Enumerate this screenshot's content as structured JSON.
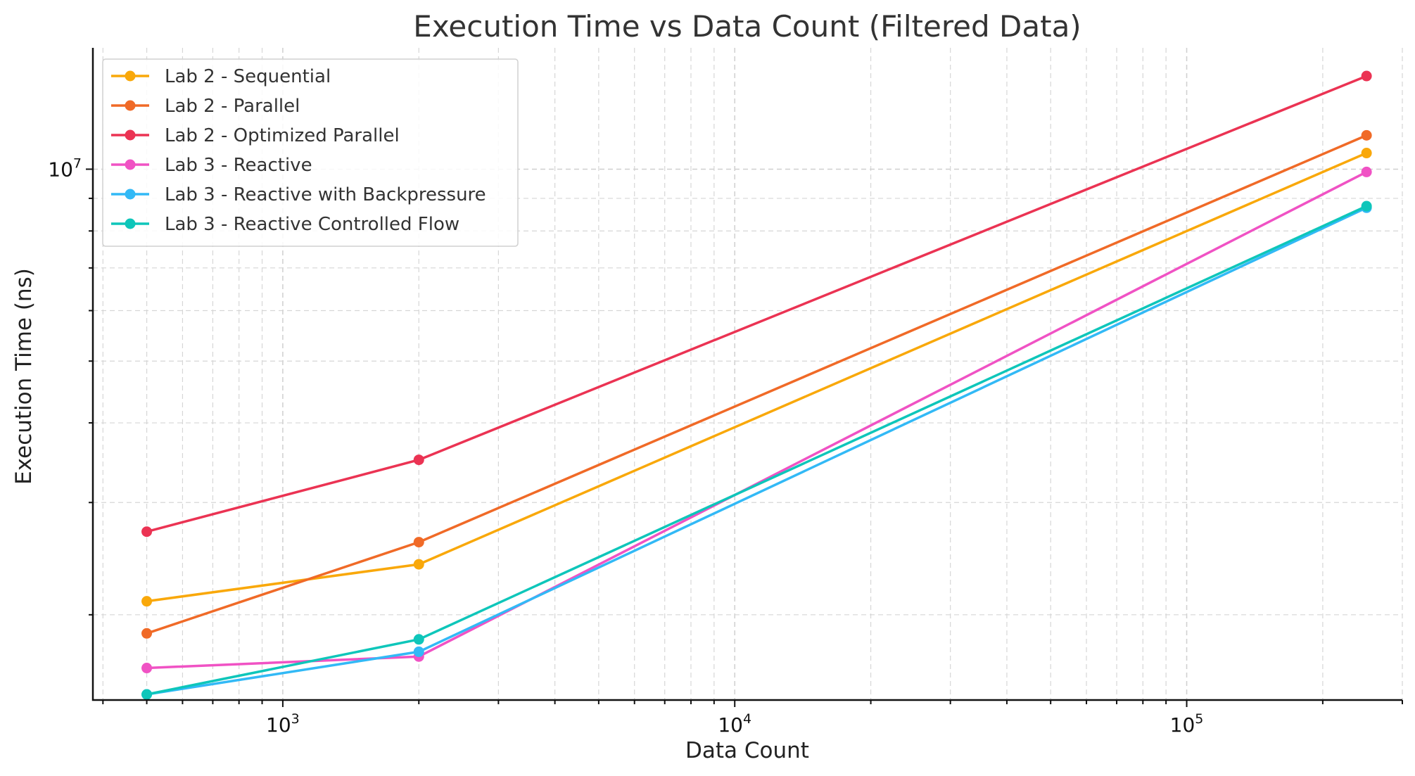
{
  "chart_data": {
    "type": "line",
    "title": "Execution Time vs Data Count (Filtered Data)",
    "xlabel": "Data Count",
    "ylabel": "Execution Time (ns)",
    "x_scale": "log",
    "y_scale": "log",
    "xlim": [
      380,
      300000
    ],
    "ylim": [
      1470000,
      15500000
    ],
    "grid": true,
    "legend_position": "top-left",
    "x_ticks": [
      {
        "base": "10",
        "exp": "3",
        "value": 1000
      },
      {
        "base": "10",
        "exp": "4",
        "value": 10000
      },
      {
        "base": "10",
        "exp": "5",
        "value": 100000
      }
    ],
    "y_ticks": [
      {
        "base": "10",
        "exp": "7",
        "value": 10000000
      }
    ],
    "x": [
      500,
      2000,
      250000
    ],
    "series": [
      {
        "name": "Lab 2 - Sequential",
        "color": "#F9A80A",
        "values": [
          2100000,
          2400000,
          10600000
        ]
      },
      {
        "name": "Lab 2 - Parallel",
        "color": "#F06A27",
        "values": [
          1870000,
          2600000,
          11300000
        ]
      },
      {
        "name": "Lab 2 - Optimized Parallel",
        "color": "#EB3353",
        "values": [
          2700000,
          3500000,
          14000000
        ]
      },
      {
        "name": "Lab 3 - Reactive",
        "color": "#F052C4",
        "values": [
          1650000,
          1720000,
          9900000
        ]
      },
      {
        "name": "Lab 3 - Reactive with Backpressure",
        "color": "#32B9F6",
        "values": [
          1500000,
          1750000,
          8700000
        ]
      },
      {
        "name": "Lab 3 - Reactive Controlled Flow",
        "color": "#0EC6BA",
        "values": [
          1500000,
          1830000,
          8750000
        ]
      }
    ]
  }
}
